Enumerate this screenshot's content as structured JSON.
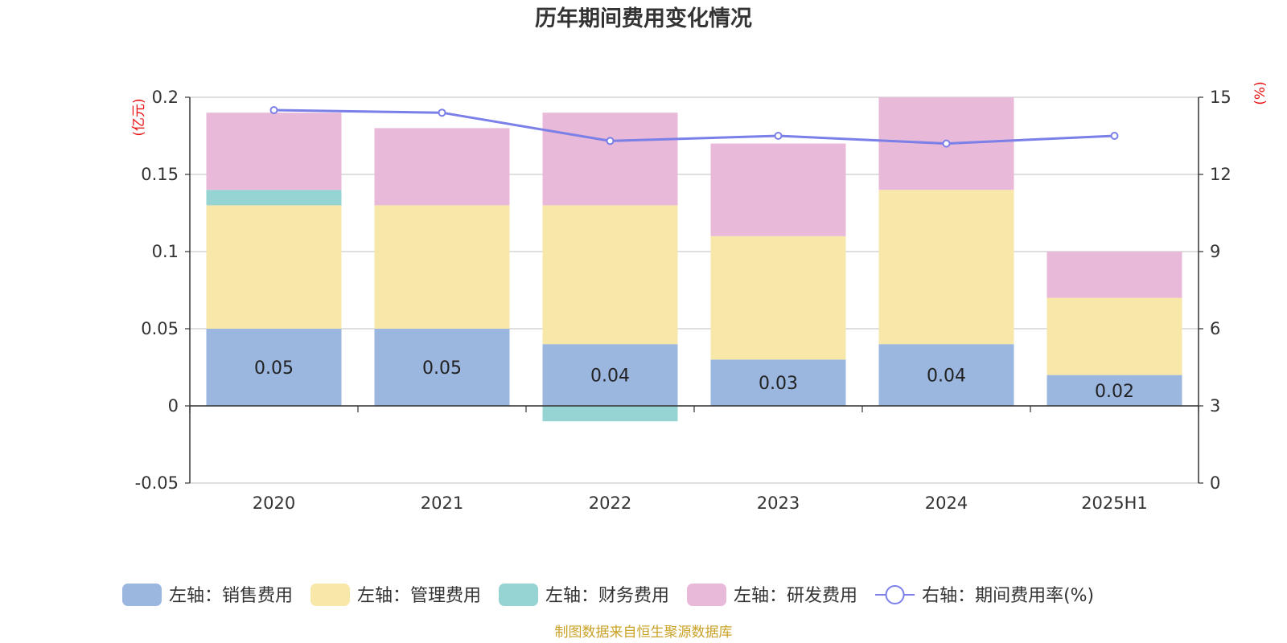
{
  "chart_data": {
    "type": "bar",
    "title": "历年期间费用变化情况",
    "categories": [
      "2020",
      "2021",
      "2022",
      "2023",
      "2024",
      "2025H1"
    ],
    "left_axis": {
      "unit": "(亿元)",
      "ylim": [
        -0.05,
        0.2
      ],
      "ticks": [
        -0.05,
        0,
        0.05,
        0.1,
        0.15,
        0.2
      ],
      "tick_labels": [
        "-0.05",
        "0",
        "0.05",
        "0.1",
        "0.15",
        "0.2"
      ]
    },
    "right_axis": {
      "unit": "(%)",
      "ylim": [
        0,
        15
      ],
      "ticks": [
        0,
        3,
        6,
        9,
        12,
        15
      ],
      "tick_labels": [
        "0",
        "3",
        "6",
        "9",
        "12",
        "15"
      ]
    },
    "series": [
      {
        "name": "左轴：销售费用",
        "type": "bar",
        "axis": "left",
        "color": "#9bb7e0",
        "values": [
          0.05,
          0.05,
          0.04,
          0.03,
          0.04,
          0.02
        ],
        "labels": [
          "0.05",
          "0.05",
          "0.04",
          "0.03",
          "0.04",
          "0.02"
        ]
      },
      {
        "name": "左轴：管理费用",
        "type": "bar",
        "axis": "left",
        "color": "#f7e7a8",
        "values": [
          0.08,
          0.08,
          0.09,
          0.08,
          0.1,
          0.05
        ]
      },
      {
        "name": "左轴：财务费用",
        "type": "bar",
        "axis": "left",
        "color": "#96d4d4",
        "values": [
          0.01,
          0.0,
          -0.01,
          0.0,
          0.0,
          0.0
        ]
      },
      {
        "name": "左轴：研发费用",
        "type": "bar",
        "axis": "left",
        "color": "#e8b9d8",
        "values": [
          0.05,
          0.05,
          0.06,
          0.06,
          0.06,
          0.03
        ]
      },
      {
        "name": "右轴：期间费用率(%)",
        "type": "line",
        "axis": "right",
        "color": "#7b7fe8",
        "values": [
          14.5,
          14.4,
          13.3,
          13.5,
          13.2,
          13.5
        ]
      }
    ],
    "stacked": true,
    "grid": true,
    "legend_position": "bottom",
    "footer": "制图数据来自恒生聚源数据库"
  }
}
